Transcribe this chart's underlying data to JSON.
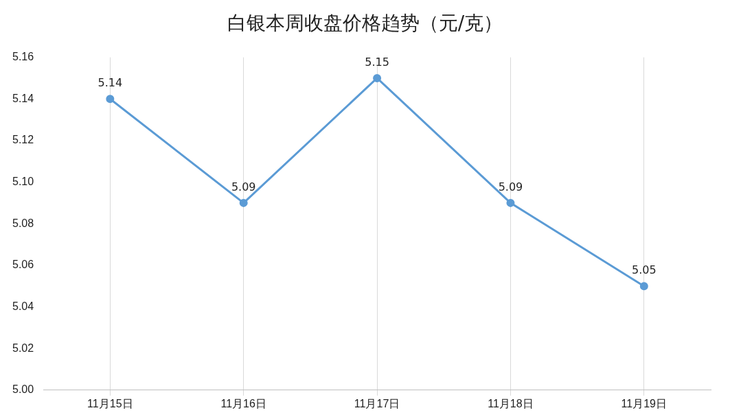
{
  "chart_data": {
    "type": "line",
    "title": "白银本周收盘价格趋势（元/克）",
    "categories": [
      "11月15日",
      "11月16日",
      "11月17日",
      "11月18日",
      "11月19日"
    ],
    "series": [
      {
        "color": "#5b9bd5",
        "values": [
          5.14,
          5.09,
          5.15,
          5.09,
          5.05
        ]
      }
    ],
    "ylim": [
      5.0,
      5.16
    ],
    "yticks": [
      {
        "value": 5.0,
        "label": "5.00"
      },
      5.02,
      5.04,
      5.06,
      5.08,
      {
        "value": 5.1,
        "label": "5.10"
      },
      5.12,
      5.14,
      5.16
    ],
    "grid": "x",
    "legend": false,
    "marker": "circle",
    "line_style": "solid",
    "data_labels": true
  }
}
